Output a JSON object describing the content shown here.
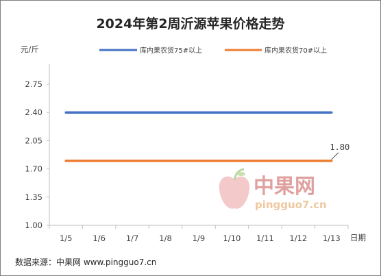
{
  "chart_data": {
    "type": "line",
    "title": "2024年第2周沂源苹果价格走势",
    "ylabel": "元/斤",
    "xlabel": "日期",
    "categories": [
      "1/5",
      "1/6",
      "1/7",
      "1/8",
      "1/9",
      "1/10",
      "1/11",
      "1/12",
      "1/13"
    ],
    "ylim": [
      1.0,
      2.75
    ],
    "yticks": [
      "1.00",
      "1.35",
      "1.70",
      "2.05",
      "2.40",
      "2.75"
    ],
    "series": [
      {
        "name": "库内果农货75#以上",
        "values": [
          2.4,
          2.4,
          2.4,
          2.4,
          2.4,
          2.4,
          2.4,
          2.4,
          2.4
        ],
        "color": "#4472c4"
      },
      {
        "name": "库内果农货70#以上",
        "values": [
          1.8,
          1.8,
          1.8,
          1.8,
          1.8,
          1.8,
          1.8,
          1.8,
          1.8
        ],
        "color": "#ed7d31"
      }
    ],
    "annotation": "1.80",
    "grid": false,
    "legend_position": "top"
  },
  "source": "数据来源：中果网 www.pingguo7.cn",
  "watermark": {
    "cn": "中果网",
    "en": "pingguo7.cn"
  }
}
